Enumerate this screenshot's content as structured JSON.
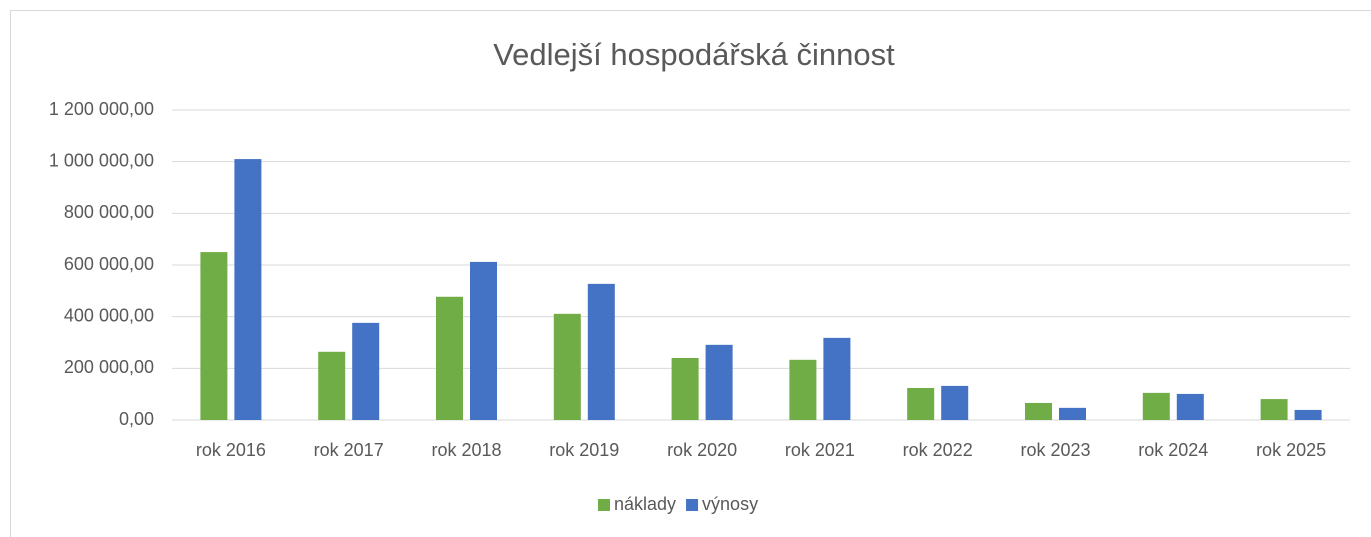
{
  "chart_data": {
    "type": "bar",
    "title": "Vedlejší hospodářská činnost",
    "categories": [
      "rok 2016",
      "rok 2017",
      "rok 2018",
      "rok 2019",
      "rok 2020",
      "rok 2021",
      "rok 2022",
      "rok 2023",
      "rok 2024",
      "rok 2025"
    ],
    "series": [
      {
        "name": "náklady",
        "color": "#70ad47",
        "values": [
          650000,
          264000,
          477000,
          411000,
          240000,
          233000,
          124000,
          66000,
          105000,
          81000
        ]
      },
      {
        "name": "výnosy",
        "color": "#4472c4",
        "values": [
          1010000,
          376000,
          612000,
          527000,
          291000,
          318000,
          132000,
          47000,
          101000,
          39000
        ]
      }
    ],
    "ylim": [
      0,
      1200000
    ],
    "yticks": [
      {
        "value": 0,
        "label": "0,00"
      },
      {
        "value": 200000,
        "label": "200 000,00"
      },
      {
        "value": 400000,
        "label": "400 000,00"
      },
      {
        "value": 600000,
        "label": "600 000,00"
      },
      {
        "value": 800000,
        "label": "800 000,00"
      },
      {
        "value": 1000000,
        "label": "1 000 000,00"
      },
      {
        "value": 1200000,
        "label": "1 200 000,00"
      }
    ],
    "grid": true,
    "legend": "bottom"
  }
}
